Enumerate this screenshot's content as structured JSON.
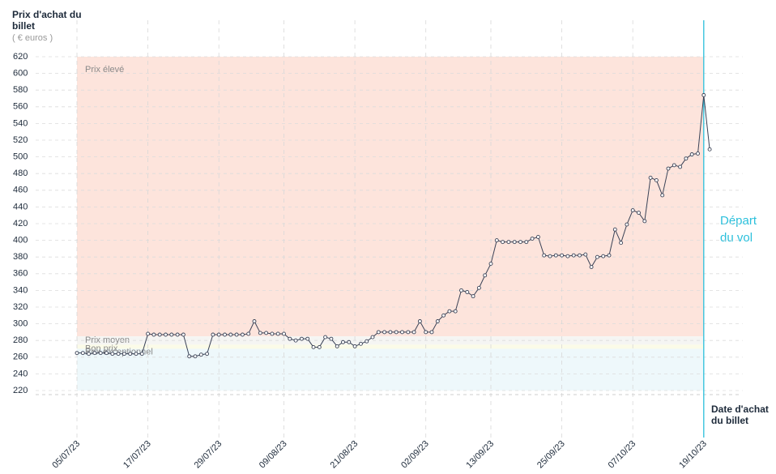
{
  "chart_data": {
    "type": "line",
    "y_title": "Prix d'achat du billet",
    "y_unit": "( € euros )",
    "x_title": "Date d'achat du billet",
    "categories": [
      "05/07/23",
      null,
      null,
      null,
      null,
      null,
      null,
      null,
      null,
      null,
      null,
      null,
      "17/07/23",
      null,
      null,
      null,
      null,
      null,
      null,
      null,
      null,
      null,
      null,
      null,
      "29/07/23",
      null,
      null,
      null,
      null,
      null,
      null,
      null,
      null,
      null,
      null,
      "09/08/23",
      null,
      null,
      null,
      null,
      null,
      null,
      null,
      null,
      null,
      null,
      null,
      "21/08/23",
      null,
      null,
      null,
      null,
      null,
      null,
      null,
      null,
      null,
      null,
      null,
      "02/09/23",
      null,
      null,
      null,
      null,
      null,
      null,
      null,
      null,
      null,
      null,
      "13/09/23",
      null,
      null,
      null,
      null,
      null,
      null,
      null,
      null,
      null,
      null,
      null,
      "25/09/23",
      null,
      null,
      null,
      null,
      null,
      null,
      null,
      null,
      null,
      null,
      null,
      "07/10/23",
      null,
      null,
      null,
      null,
      null,
      null,
      null,
      null,
      null,
      null,
      null,
      "19/10/23",
      null
    ],
    "series": [
      {
        "color": "#3a4256",
        "values": [
          265,
          265,
          264,
          265,
          265,
          265,
          264,
          264,
          264,
          264,
          264,
          264,
          288,
          287,
          287,
          287,
          287,
          287,
          287,
          261,
          261,
          263,
          264,
          287,
          287,
          287,
          287,
          287,
          287,
          288,
          303,
          289,
          289,
          288,
          288,
          288,
          282,
          280,
          282,
          282,
          272,
          272,
          284,
          282,
          273,
          278,
          278,
          273,
          276,
          279,
          284,
          290,
          290,
          290,
          290,
          290,
          290,
          290,
          303,
          290,
          290,
          303,
          310,
          315,
          315,
          340,
          338,
          333,
          343,
          358,
          372,
          400,
          398,
          398,
          398,
          398,
          398,
          402,
          404,
          382,
          381,
          382,
          382,
          381,
          382,
          382,
          383,
          368,
          380,
          381,
          382,
          413,
          397,
          419,
          436,
          433,
          423,
          475,
          472,
          454,
          486,
          490,
          488,
          498,
          503,
          504,
          574,
          509
        ]
      }
    ],
    "ylim": [
      220,
      620
    ],
    "yticks": [
      220,
      240,
      260,
      280,
      300,
      320,
      340,
      360,
      380,
      400,
      420,
      440,
      460,
      480,
      500,
      520,
      540,
      560,
      580,
      600,
      620
    ],
    "grid": true,
    "bands": [
      {
        "label": "Prix élevé",
        "from": 285,
        "to": 620,
        "color": "#fde4dc"
      },
      {
        "label": "Prix moyen",
        "from": 275,
        "to": 285,
        "color": "#f5f5f3"
      },
      {
        "label": "Bon prix",
        "from": 270,
        "to": 275,
        "color": "#fbfbe8"
      },
      {
        "label": "Prix exceptionnel",
        "from": 220,
        "to": 270,
        "color": "#eef8fb"
      }
    ],
    "departure": {
      "label": "Départ du vol",
      "date": "19/10/23",
      "color": "#2bc0dc"
    }
  }
}
